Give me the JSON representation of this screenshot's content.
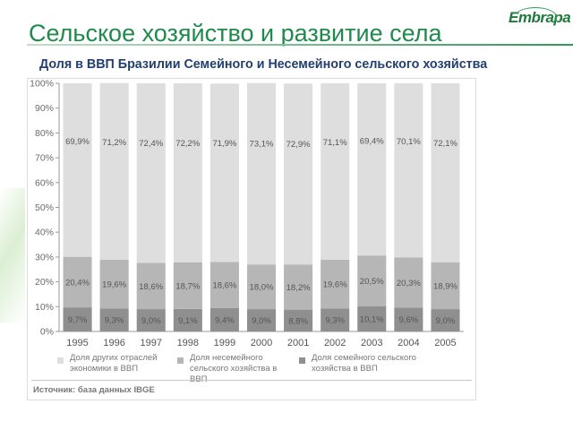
{
  "header": {
    "title": "Сельское хозяйство и развитие села",
    "logo": "Embrapa"
  },
  "subtitle": "Доля в ВВП Бразилии Семейного и Несемейного сельского хозяйства",
  "chart_data": {
    "type": "bar",
    "stacked": true,
    "percent": true,
    "categories": [
      "1995",
      "1996",
      "1997",
      "1998",
      "1999",
      "2000",
      "2001",
      "2002",
      "2003",
      "2004",
      "2005"
    ],
    "series": [
      {
        "name": "Доля семейного сельского хозяйства в ВВП",
        "color": "#8f8f8f",
        "values": [
          9.7,
          9.3,
          9.0,
          9.1,
          9.4,
          9.0,
          8.8,
          9.3,
          10.1,
          9.6,
          9.0
        ],
        "labels": [
          "9,7%",
          "9,3%",
          "9,0%",
          "9,1%",
          "9,4%",
          "9,0%",
          "8,8%",
          "9,3%",
          "10,1%",
          "9,6%",
          "9,0%"
        ]
      },
      {
        "name": "Доля несемейного сельского хозяйства в ВВП",
        "color": "#b6b6b6",
        "values": [
          20.4,
          19.6,
          18.6,
          18.7,
          18.6,
          18.0,
          18.2,
          19.6,
          20.5,
          20.3,
          18.9
        ],
        "labels": [
          "20,4%",
          "19,6%",
          "18,6%",
          "18,7%",
          "18,6%",
          "18,0%",
          "18,2%",
          "19,6%",
          "20,5%",
          "20,3%",
          "18,9%"
        ]
      },
      {
        "name": "Доля других отраслей экономики в ВВП",
        "color": "#dedede",
        "values": [
          69.9,
          71.2,
          72.4,
          72.2,
          71.9,
          73.1,
          72.9,
          71.1,
          69.4,
          70.1,
          72.1
        ],
        "labels": [
          "69,9%",
          "71,2%",
          "72,4%",
          "72,2%",
          "71,9%",
          "73,1%",
          "72,9%",
          "71,1%",
          "69,4%",
          "70,1%",
          "72,1%"
        ]
      }
    ],
    "y_ticks": [
      "0%",
      "10%",
      "20%",
      "30%",
      "40%",
      "50%",
      "60%",
      "70%",
      "80%",
      "90%",
      "100%"
    ],
    "ylim": [
      0,
      100
    ],
    "grid": false,
    "legend": [
      {
        "line1": "Доля других отраслей",
        "line2": "экономики в ВВП",
        "line3": ""
      },
      {
        "line1": "Доля несемейного",
        "line2": "сельского хозяйства в",
        "line3": "ВВП"
      },
      {
        "line1": "Доля семейного сельского",
        "line2": "хозяйства в ВВП",
        "line3": ""
      }
    ],
    "source": "Источник: база данных IBGE"
  }
}
